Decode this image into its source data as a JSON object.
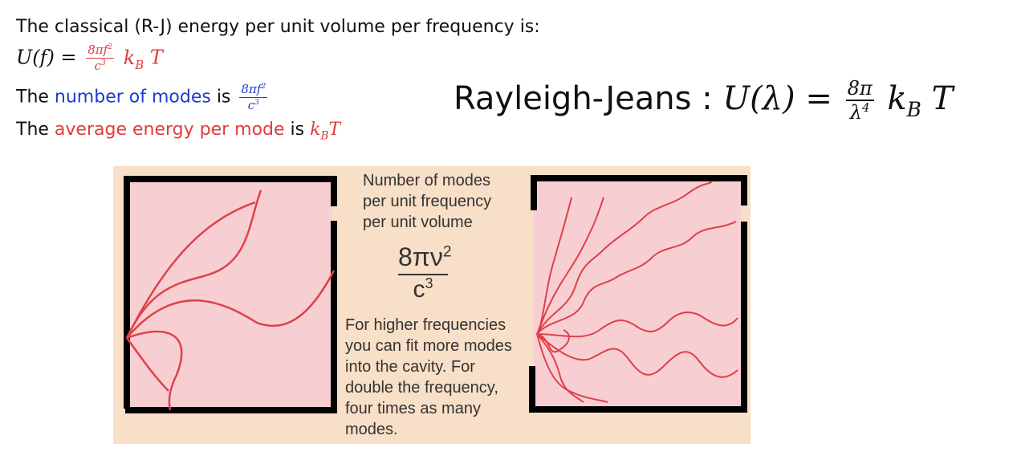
{
  "text": {
    "line1": "The classical (R-J) energy per unit volume per frequency is:",
    "l2_U": "U(f) =",
    "l2_num": "8πf",
    "l2_num_sup": "2",
    "l2_den": "c",
    "l2_den_sup": "3",
    "l2_k": "k",
    "l2_k_sub": "B",
    "l2_T": "T",
    "l3_pre": "The ",
    "l3_highlight": "number of modes",
    "l3_is": " is",
    "l3_num": "8πf",
    "l3_num_sup": "2",
    "l3_den": "c",
    "l3_den_sup": "3",
    "l4_pre": "The ",
    "l4_highlight": "average energy per mode",
    "l4_is": " is ",
    "l4_k": "k",
    "l4_k_sub": "B",
    "l4_T": "T"
  },
  "rj": {
    "label": "Rayleigh-Jeans : ",
    "lhs": "U(λ) =",
    "num": "8π",
    "den": "λ",
    "den_sup": "4",
    "k": "k",
    "k_sub": "B",
    "T": "T"
  },
  "figure": {
    "heading": [
      "Number of modes",
      "per unit frequency",
      "per unit volume"
    ],
    "formula_num": "8πν",
    "formula_num_sup": "2",
    "formula_den": "c",
    "formula_den_sup": "3",
    "body": [
      "For higher frequencies",
      "you can fit more modes",
      "into the cavity. For",
      "double the frequency,",
      "four times as  many",
      "modes."
    ]
  },
  "colors": {
    "blue": "#1f3bd1",
    "red": "#e33b3b",
    "figure_bg": "#f8dfc7",
    "cavity_fill": "#f7cfd2",
    "wave": "#e0404a",
    "wall": "#000000"
  }
}
